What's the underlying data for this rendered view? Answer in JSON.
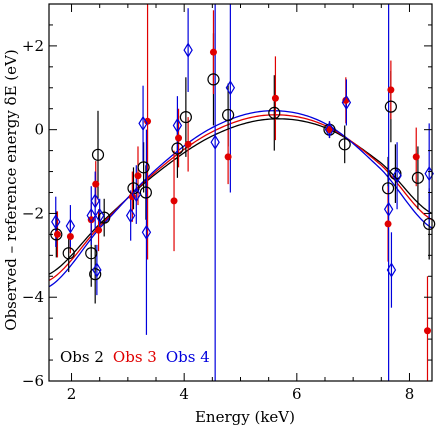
{
  "chart_data": {
    "type": "scatter",
    "xlabel": "Energy (keV)",
    "ylabel": "Observed – reference energy δE (eV)",
    "xlim": [
      1.6,
      8.4
    ],
    "ylim": [
      -6,
      3
    ],
    "x_ticks": [
      2,
      4,
      6,
      8
    ],
    "x_tick_labels": [
      "2",
      "4",
      "6",
      "8"
    ],
    "y_ticks": [
      -6,
      -4,
      -2,
      0,
      2
    ],
    "y_tick_labels": [
      "−6",
      "−4",
      "−2",
      "0",
      "+2"
    ],
    "x_minor_step": 0.5,
    "y_minor_step": 0.5,
    "grid": false,
    "legend_position": "bottom-left",
    "series": [
      {
        "name": "Obs 2",
        "color": "#000000",
        "marker": "open-circle",
        "points": [
          {
            "x": 1.73,
            "y": -2.5,
            "yerr": 0.55
          },
          {
            "x": 1.95,
            "y": -2.95,
            "yerr": 0.45
          },
          {
            "x": 2.35,
            "y": -2.95,
            "yerr": 0.8
          },
          {
            "x": 2.42,
            "y": -3.45,
            "yerr": 0.7
          },
          {
            "x": 2.47,
            "y": -0.6,
            "yerr": 1.05
          },
          {
            "x": 2.58,
            "y": -2.1,
            "yerr": 0.45
          },
          {
            "x": 3.1,
            "y": -1.4,
            "yerr": 0.5
          },
          {
            "x": 3.28,
            "y": -0.9,
            "yerr": 0.6
          },
          {
            "x": 3.32,
            "y": -1.5,
            "yerr": 0.65
          },
          {
            "x": 3.88,
            "y": -0.45,
            "yerr": 0.7
          },
          {
            "x": 4.03,
            "y": 0.3,
            "yerr": 0.95
          },
          {
            "x": 4.52,
            "y": 1.2,
            "yerr": 1.1
          },
          {
            "x": 4.78,
            "y": 0.35,
            "yerr": 0.75
          },
          {
            "x": 5.6,
            "y": 0.4,
            "yerr": 0.9
          },
          {
            "x": 6.58,
            "y": 0.0,
            "yerr": 0.2
          },
          {
            "x": 6.85,
            "y": -0.35,
            "yerr": 0.45
          },
          {
            "x": 7.62,
            "y": -1.4,
            "yerr": 0.75
          },
          {
            "x": 7.67,
            "y": 0.55,
            "yerr": 0.85
          },
          {
            "x": 7.75,
            "y": -1.05,
            "yerr": 0.7
          },
          {
            "x": 8.15,
            "y": -1.15,
            "yerr": 0.75
          },
          {
            "x": 8.35,
            "y": -2.25,
            "yerr": 0.85
          }
        ]
      },
      {
        "name": "Obs 3",
        "color": "#e00000",
        "marker": "filled-circle",
        "points": [
          {
            "x": 1.75,
            "y": -2.5,
            "yerr": 0.55
          },
          {
            "x": 1.98,
            "y": -2.55,
            "yerr": 0.4
          },
          {
            "x": 2.35,
            "y": -2.15,
            "yerr": 0.4
          },
          {
            "x": 2.43,
            "y": -1.3,
            "yerr": 0.55
          },
          {
            "x": 2.48,
            "y": -2.4,
            "yerr": 0.5
          },
          {
            "x": 3.08,
            "y": -1.6,
            "yerr": 0.6
          },
          {
            "x": 3.18,
            "y": -1.1,
            "yerr": 0.7
          },
          {
            "x": 3.35,
            "y": 0.2,
            "yerr": 3.3
          },
          {
            "x": 3.82,
            "y": -1.7,
            "yerr": 1.2
          },
          {
            "x": 3.9,
            "y": -0.2,
            "yerr": 0.7
          },
          {
            "x": 4.07,
            "y": -0.35,
            "yerr": 0.65
          },
          {
            "x": 4.52,
            "y": 1.85,
            "yerr": 1.0
          },
          {
            "x": 4.78,
            "y": -0.65,
            "yerr": 0.65
          },
          {
            "x": 5.62,
            "y": 0.75,
            "yerr": 1.0
          },
          {
            "x": 6.58,
            "y": 0.0,
            "yerr": 0.2
          },
          {
            "x": 6.87,
            "y": 0.7,
            "yerr": 0.55
          },
          {
            "x": 7.62,
            "y": -2.25,
            "yerr": 0.9
          },
          {
            "x": 7.67,
            "y": 0.95,
            "yerr": 0.7
          },
          {
            "x": 8.12,
            "y": -0.65,
            "yerr": 0.7
          },
          {
            "x": 8.32,
            "y": -4.8,
            "yerr": 1.3
          }
        ]
      },
      {
        "name": "Obs 4",
        "color": "#0000dd",
        "marker": "open-diamond",
        "points": [
          {
            "x": 1.72,
            "y": -2.2,
            "yerr": 0.6
          },
          {
            "x": 1.98,
            "y": -2.3,
            "yerr": 0.5
          },
          {
            "x": 2.35,
            "y": -2.05,
            "yerr": 0.7
          },
          {
            "x": 2.42,
            "y": -1.7,
            "yerr": 0.7
          },
          {
            "x": 2.45,
            "y": -3.35,
            "yerr": 0.6
          },
          {
            "x": 2.5,
            "y": -2.05,
            "yerr": 0.4
          },
          {
            "x": 3.05,
            "y": -2.05,
            "yerr": 0.6
          },
          {
            "x": 3.15,
            "y": -1.55,
            "yerr": 0.7
          },
          {
            "x": 3.27,
            "y": 0.15,
            "yerr": 0.9
          },
          {
            "x": 3.33,
            "y": -2.45,
            "yerr": 2.45
          },
          {
            "x": 3.88,
            "y": 0.1,
            "yerr": 0.7
          },
          {
            "x": 4.07,
            "y": 1.9,
            "yerr": 1.0
          },
          {
            "x": 4.55,
            "y": -0.3,
            "yerr": 7.0
          },
          {
            "x": 4.82,
            "y": 1.0,
            "yerr": 2.5
          },
          {
            "x": 6.58,
            "y": 0.0,
            "yerr": 0.2
          },
          {
            "x": 6.88,
            "y": 0.65,
            "yerr": 0.55
          },
          {
            "x": 7.63,
            "y": -1.9,
            "yerr": 6.0
          },
          {
            "x": 7.68,
            "y": -3.35,
            "yerr": 0.9
          },
          {
            "x": 7.78,
            "y": -1.1,
            "yerr": 0.8
          },
          {
            "x": 8.35,
            "y": -1.05,
            "yerr": 1.2
          }
        ]
      }
    ],
    "fit_curves": [
      {
        "series": "Obs 2",
        "color": "#000000",
        "x": [
          1.6,
          2.5,
          3.5,
          4.5,
          5.5,
          6.5,
          7.5,
          8.4
        ],
        "y": [
          -3.45,
          -2.25,
          -1.05,
          -0.15,
          0.25,
          0.05,
          -0.8,
          -2.0
        ]
      },
      {
        "series": "Obs 3",
        "color": "#e00000",
        "x": [
          1.6,
          2.5,
          3.5,
          4.5,
          5.5,
          6.5,
          7.5,
          8.4
        ],
        "y": [
          -3.6,
          -2.3,
          -1.0,
          -0.05,
          0.35,
          0.1,
          -0.85,
          -2.15
        ]
      },
      {
        "series": "Obs 4",
        "color": "#0000dd",
        "x": [
          1.6,
          2.5,
          3.5,
          4.5,
          5.5,
          6.5,
          7.5,
          8.4
        ],
        "y": [
          -3.75,
          -2.35,
          -0.95,
          0.05,
          0.45,
          0.15,
          -0.95,
          -2.35
        ]
      }
    ]
  }
}
